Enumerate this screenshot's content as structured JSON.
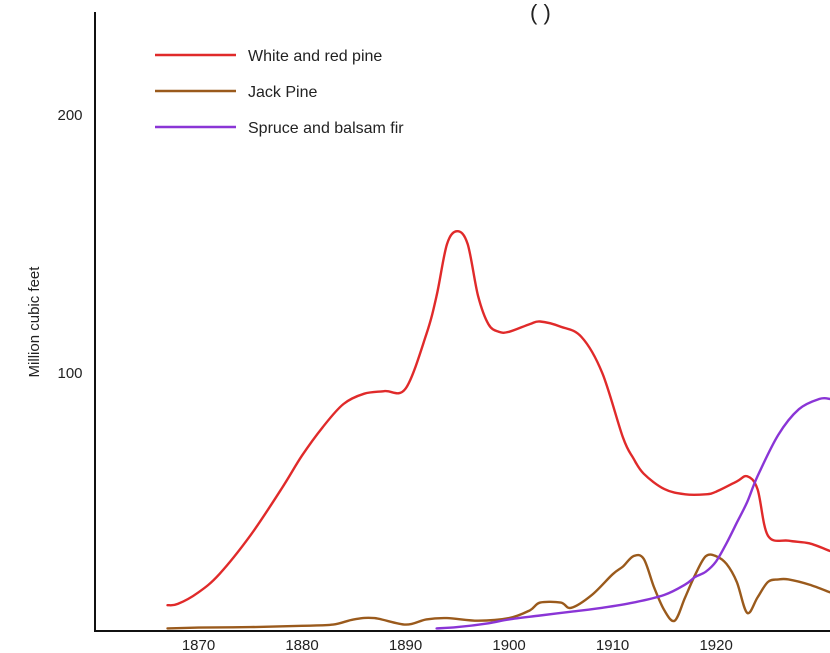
{
  "chart_data": {
    "type": "line",
    "title": "(                              )",
    "xlabel": "",
    "ylabel": "Million cubic feet",
    "xlim": [
      1860,
      1931
    ],
    "ylim": [
      0,
      240
    ],
    "x_ticks": [
      1870,
      1880,
      1890,
      1900,
      1910,
      1920
    ],
    "y_ticks": [
      100,
      200
    ],
    "grid": false,
    "legend_position": "top-left",
    "series": [
      {
        "name": "White and red pine",
        "color": "#e02a2a",
        "x": [
          1867,
          1868,
          1870,
          1872,
          1875,
          1878,
          1880,
          1882,
          1884,
          1886,
          1888,
          1890,
          1892,
          1893,
          1894,
          1895,
          1896,
          1897,
          1898,
          1899,
          1900,
          1902,
          1903,
          1905,
          1907,
          1909,
          1911,
          1912,
          1913,
          1915,
          1917,
          1919,
          1920,
          1922,
          1923,
          1924,
          1925,
          1927,
          1929,
          1931
        ],
        "y": [
          10,
          10.5,
          15,
          22,
          37,
          55,
          68,
          79,
          88,
          92,
          93,
          94,
          115,
          130,
          150,
          155,
          150,
          130,
          119,
          116,
          116,
          119,
          120,
          118,
          114,
          100,
          75,
          67,
          61,
          55,
          53,
          53,
          54,
          58,
          60,
          55,
          37,
          35,
          34,
          31
        ]
      },
      {
        "name": "Jack Pine",
        "color": "#9a5a1c",
        "x": [
          1867,
          1870,
          1875,
          1880,
          1883,
          1885,
          1887,
          1890,
          1892,
          1894,
          1897,
          1900,
          1902,
          1903,
          1905,
          1906,
          1908,
          1910,
          1911,
          1912,
          1913,
          1914,
          1915,
          1916,
          1917,
          1918,
          1919,
          1920,
          1921,
          1922,
          1923,
          1924,
          1925,
          1926,
          1927,
          1929,
          1931
        ],
        "y": [
          1,
          1.3,
          1.5,
          2,
          2.5,
          4.5,
          5,
          2.5,
          4.5,
          5,
          4,
          5,
          8,
          11,
          11,
          9,
          14,
          22,
          25,
          29,
          28,
          17,
          8,
          4,
          13,
          22,
          29,
          29,
          26,
          19,
          7,
          13,
          19,
          20,
          20,
          18,
          15
        ]
      },
      {
        "name": "Spruce and balsam fir",
        "color": "#8a35d6",
        "x": [
          1893,
          1895,
          1898,
          1900,
          1903,
          1906,
          1909,
          1912,
          1915,
          1917,
          1918,
          1919,
          1920,
          1921,
          1922,
          1923,
          1924,
          1926,
          1928,
          1930,
          1931
        ],
        "y": [
          1,
          1.5,
          3,
          4.5,
          6,
          7.5,
          9,
          11,
          14,
          18,
          21,
          23,
          27,
          34,
          42,
          50,
          60,
          76,
          86,
          90,
          90
        ]
      }
    ]
  }
}
